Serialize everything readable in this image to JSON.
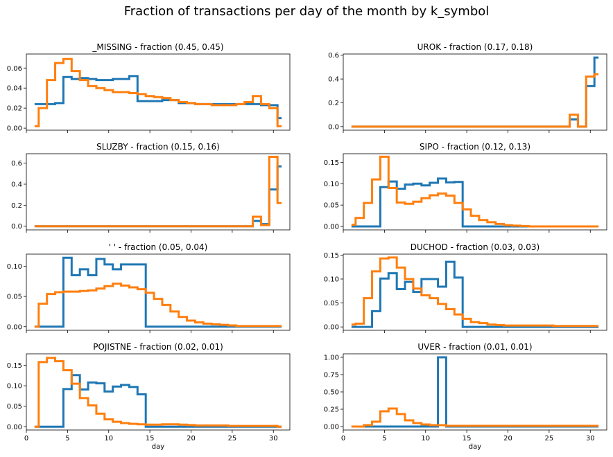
{
  "title": "Fraction of transactions per day of the month by k_symbol",
  "colors": {
    "series_a": "#1f77b4",
    "series_b": "#ff7f0e"
  },
  "chart_data": [
    {
      "type": "line",
      "drawstyle": "steps-mid",
      "title": "_MISSING - fraction (0.45, 0.45)",
      "xlabel": "",
      "xlim": [
        0,
        32
      ],
      "ylim": [
        -0.002,
        0.074
      ],
      "yticks": [
        0.0,
        0.02,
        0.04,
        0.06
      ],
      "ytick_labels": [
        "0.00",
        "0.02",
        "0.04",
        "0.06"
      ],
      "x": [
        1,
        2,
        3,
        4,
        5,
        6,
        7,
        8,
        9,
        10,
        11,
        12,
        13,
        14,
        15,
        16,
        17,
        18,
        19,
        20,
        21,
        22,
        23,
        24,
        25,
        26,
        27,
        28,
        29,
        30,
        31
      ],
      "series": [
        {
          "values": [
            0.024,
            0.024,
            0.024,
            0.025,
            0.051,
            0.049,
            0.05,
            0.049,
            0.048,
            0.048,
            0.049,
            0.049,
            0.052,
            0.027,
            0.027,
            0.027,
            0.028,
            0.028,
            0.025,
            0.025,
            0.024,
            0.024,
            0.024,
            0.024,
            0.024,
            0.024,
            0.024,
            0.024,
            0.023,
            0.023,
            0.01
          ]
        },
        {
          "values": [
            0.002,
            0.02,
            0.048,
            0.065,
            0.069,
            0.057,
            0.048,
            0.042,
            0.04,
            0.038,
            0.036,
            0.036,
            0.035,
            0.034,
            0.032,
            0.031,
            0.03,
            0.028,
            0.026,
            0.025,
            0.024,
            0.024,
            0.023,
            0.023,
            0.023,
            0.024,
            0.026,
            0.032,
            0.024,
            0.02,
            0.002
          ]
        }
      ]
    },
    {
      "type": "line",
      "drawstyle": "steps-mid",
      "title": "UROK - fraction (0.17, 0.18)",
      "xlabel": "",
      "xlim": [
        0,
        32
      ],
      "ylim": [
        -0.03,
        0.61
      ],
      "yticks": [
        0.0,
        0.2,
        0.4,
        0.6
      ],
      "ytick_labels": [
        "0.0",
        "0.2",
        "0.4",
        "0.6"
      ],
      "x": [
        1,
        2,
        3,
        4,
        5,
        6,
        7,
        8,
        9,
        10,
        11,
        12,
        13,
        14,
        15,
        16,
        17,
        18,
        19,
        20,
        21,
        22,
        23,
        24,
        25,
        26,
        27,
        28,
        29,
        30,
        31
      ],
      "series": [
        {
          "values": [
            0,
            0,
            0,
            0,
            0,
            0,
            0,
            0,
            0,
            0,
            0,
            0,
            0,
            0,
            0,
            0,
            0,
            0,
            0,
            0,
            0,
            0,
            0,
            0,
            0,
            0,
            0,
            0.06,
            0,
            0.34,
            0.58
          ]
        },
        {
          "values": [
            0,
            0,
            0,
            0,
            0,
            0,
            0,
            0,
            0,
            0,
            0,
            0,
            0,
            0,
            0,
            0,
            0,
            0,
            0,
            0,
            0,
            0,
            0,
            0,
            0,
            0,
            0,
            0.1,
            0,
            0.42,
            0.44
          ]
        }
      ]
    },
    {
      "type": "line",
      "drawstyle": "steps-mid",
      "title": "SLUZBY - fraction (0.15, 0.16)",
      "xlabel": "",
      "xlim": [
        0,
        32
      ],
      "ylim": [
        -0.035,
        0.69
      ],
      "yticks": [
        0.0,
        0.2,
        0.4,
        0.6
      ],
      "ytick_labels": [
        "0.0",
        "0.2",
        "0.4",
        "0.6"
      ],
      "x": [
        1,
        2,
        3,
        4,
        5,
        6,
        7,
        8,
        9,
        10,
        11,
        12,
        13,
        14,
        15,
        16,
        17,
        18,
        19,
        20,
        21,
        22,
        23,
        24,
        25,
        26,
        27,
        28,
        29,
        30,
        31
      ],
      "series": [
        {
          "values": [
            0,
            0,
            0,
            0,
            0,
            0,
            0,
            0,
            0,
            0,
            0,
            0,
            0,
            0,
            0,
            0,
            0,
            0,
            0,
            0,
            0,
            0,
            0,
            0,
            0,
            0,
            0,
            0.05,
            0.02,
            0.35,
            0.57
          ]
        },
        {
          "values": [
            0,
            0,
            0,
            0,
            0,
            0,
            0,
            0,
            0,
            0,
            0,
            0,
            0,
            0,
            0,
            0,
            0,
            0,
            0,
            0,
            0,
            0,
            0,
            0,
            0,
            0,
            0,
            0.09,
            0.01,
            0.66,
            0.22
          ]
        }
      ]
    },
    {
      "type": "line",
      "drawstyle": "steps-mid",
      "title": "SIPO - fraction (0.12, 0.13)",
      "xlabel": "",
      "xlim": [
        0,
        32
      ],
      "ylim": [
        -0.008,
        0.17
      ],
      "yticks": [
        0.0,
        0.05,
        0.1,
        0.15
      ],
      "ytick_labels": [
        "0.00",
        "0.05",
        "0.10",
        "0.15"
      ],
      "x": [
        1,
        2,
        3,
        4,
        5,
        6,
        7,
        8,
        9,
        10,
        11,
        12,
        13,
        14,
        15,
        16,
        17,
        18,
        19,
        20,
        21,
        22,
        23,
        24,
        25,
        26,
        27,
        28,
        29,
        30,
        31
      ],
      "series": [
        {
          "values": [
            0,
            0,
            0,
            0,
            0.092,
            0.105,
            0.088,
            0.098,
            0.1,
            0.096,
            0.102,
            0.112,
            0.103,
            0.104,
            0,
            0,
            0,
            0,
            0,
            0,
            0,
            0,
            0,
            0,
            0,
            0,
            0,
            0,
            0,
            0,
            0
          ]
        },
        {
          "values": [
            0.004,
            0.02,
            0.055,
            0.11,
            0.163,
            0.09,
            0.056,
            0.053,
            0.058,
            0.066,
            0.073,
            0.077,
            0.072,
            0.055,
            0.04,
            0.025,
            0.015,
            0.01,
            0.006,
            0.003,
            0.002,
            0.001,
            0,
            0,
            0,
            0,
            0,
            0,
            0,
            0,
            0
          ]
        }
      ]
    },
    {
      "type": "line",
      "drawstyle": "steps-mid",
      "title": "' ' - fraction (0.05, 0.04)",
      "xlabel": "",
      "xlim": [
        0,
        32
      ],
      "ylim": [
        -0.006,
        0.12
      ],
      "yticks": [
        0.0,
        0.05,
        0.1
      ],
      "ytick_labels": [
        "0.00",
        "0.05",
        "0.10"
      ],
      "x": [
        1,
        2,
        3,
        4,
        5,
        6,
        7,
        8,
        9,
        10,
        11,
        12,
        13,
        14,
        15,
        16,
        17,
        18,
        19,
        20,
        21,
        22,
        23,
        24,
        25,
        26,
        27,
        28,
        29,
        30,
        31
      ],
      "series": [
        {
          "values": [
            0,
            0,
            0,
            0,
            0.114,
            0.085,
            0.095,
            0.085,
            0.112,
            0.103,
            0.095,
            0.103,
            0.103,
            0.103,
            0,
            0,
            0,
            0,
            0,
            0,
            0,
            0,
            0,
            0,
            0,
            0,
            0,
            0,
            0,
            0,
            0
          ]
        },
        {
          "values": [
            0,
            0.038,
            0.054,
            0.057,
            0.058,
            0.058,
            0.059,
            0.06,
            0.063,
            0.067,
            0.071,
            0.068,
            0.065,
            0.062,
            0.056,
            0.046,
            0.036,
            0.025,
            0.016,
            0.01,
            0.007,
            0.005,
            0.004,
            0.003,
            0.002,
            0.001,
            0.001,
            0.001,
            0.001,
            0.001,
            0.001
          ]
        }
      ]
    },
    {
      "type": "line",
      "drawstyle": "steps-mid",
      "title": "DUCHOD - fraction (0.03, 0.03)",
      "xlabel": "",
      "xlim": [
        0,
        32
      ],
      "ylim": [
        -0.007,
        0.152
      ],
      "yticks": [
        0.0,
        0.05,
        0.1,
        0.15
      ],
      "ytick_labels": [
        "0.00",
        "0.05",
        "0.10",
        "0.15"
      ],
      "x": [
        1,
        2,
        3,
        4,
        5,
        6,
        7,
        8,
        9,
        10,
        11,
        12,
        13,
        14,
        15,
        16,
        17,
        18,
        19,
        20,
        21,
        22,
        23,
        24,
        25,
        26,
        27,
        28,
        29,
        30,
        31
      ],
      "series": [
        {
          "values": [
            0,
            0,
            0,
            0.033,
            0.101,
            0.112,
            0.079,
            0.094,
            0.073,
            0.1,
            0.1,
            0.084,
            0.136,
            0.103,
            0,
            0,
            0,
            0,
            0,
            0,
            0,
            0,
            0,
            0,
            0,
            0,
            0,
            0,
            0,
            0,
            0
          ]
        },
        {
          "values": [
            0.005,
            0.007,
            0.06,
            0.116,
            0.143,
            0.145,
            0.124,
            0.1,
            0.08,
            0.066,
            0.06,
            0.048,
            0.037,
            0.026,
            0.017,
            0.01,
            0.008,
            0.005,
            0.004,
            0.003,
            0.003,
            0.003,
            0.003,
            0.003,
            0.003,
            0.002,
            0.002,
            0.002,
            0.002,
            0.002,
            0.002
          ]
        }
      ]
    },
    {
      "type": "line",
      "drawstyle": "steps-mid",
      "title": "POJISTNE - fraction (0.02, 0.01)",
      "xlabel": "day",
      "xlim": [
        0,
        32
      ],
      "ylim": [
        -0.008,
        0.178
      ],
      "yticks": [
        0.0,
        0.05,
        0.1,
        0.15
      ],
      "ytick_labels": [
        "0.00",
        "0.05",
        "0.10",
        "0.15"
      ],
      "xticks": [
        0,
        5,
        10,
        15,
        20,
        25,
        30
      ],
      "xtick_labels": [
        "0",
        "5",
        "10",
        "15",
        "20",
        "25",
        "30"
      ],
      "x": [
        1,
        2,
        3,
        4,
        5,
        6,
        7,
        8,
        9,
        10,
        11,
        12,
        13,
        14,
        15,
        16,
        17,
        18,
        19,
        20,
        21,
        22,
        23,
        24,
        25,
        26,
        27,
        28,
        29,
        30,
        31
      ],
      "series": [
        {
          "values": [
            0,
            0,
            0,
            0,
            0.092,
            0.126,
            0.091,
            0.108,
            0.106,
            0.086,
            0.098,
            0.102,
            0.097,
            0.079,
            0,
            0,
            0,
            0,
            0,
            0,
            0,
            0,
            0,
            0,
            0,
            0,
            0,
            0,
            0,
            0,
            0
          ]
        },
        {
          "values": [
            0,
            0.158,
            0.168,
            0.16,
            0.138,
            0.105,
            0.07,
            0.052,
            0.032,
            0.018,
            0.012,
            0.009,
            0.007,
            0.006,
            0.005,
            0.005,
            0.006,
            0.006,
            0.005,
            0.004,
            0.003,
            0.003,
            0.003,
            0.003,
            0.002,
            0.002,
            0.002,
            0.002,
            0.002,
            0.002,
            0
          ]
        }
      ]
    },
    {
      "type": "line",
      "drawstyle": "steps-mid",
      "title": "UVER - fraction (0.01, 0.01)",
      "xlabel": "day",
      "xlim": [
        0,
        32
      ],
      "ylim": [
        -0.05,
        1.05
      ],
      "yticks": [
        0.0,
        0.25,
        0.5,
        0.75,
        1.0
      ],
      "ytick_labels": [
        "0.00",
        "0.25",
        "0.50",
        "0.75",
        "1.00"
      ],
      "xticks": [
        0,
        5,
        10,
        15,
        20,
        25,
        30
      ],
      "xtick_labels": [
        "0",
        "5",
        "10",
        "15",
        "20",
        "25",
        "30"
      ],
      "x": [
        1,
        2,
        3,
        4,
        5,
        6,
        7,
        8,
        9,
        10,
        11,
        12,
        13,
        14,
        15,
        16,
        17,
        18,
        19,
        20,
        21,
        22,
        23,
        24,
        25,
        26,
        27,
        28,
        29,
        30,
        31
      ],
      "series": [
        {
          "values": [
            0,
            0,
            0,
            0,
            0,
            0,
            0,
            0,
            0,
            0,
            0,
            1.0,
            0,
            0,
            0,
            0,
            0,
            0,
            0,
            0,
            0,
            0,
            0,
            0,
            0,
            0,
            0,
            0,
            0,
            0,
            0
          ]
        },
        {
          "values": [
            0,
            0,
            0.02,
            0.07,
            0.22,
            0.26,
            0.18,
            0.09,
            0.05,
            0.03,
            0.02,
            0.02,
            0.01,
            0.01,
            0.01,
            0.01,
            0.01,
            0.01,
            0.01,
            0.01,
            0.01,
            0.01,
            0.01,
            0.01,
            0.01,
            0.01,
            0.01,
            0.01,
            0.01,
            0.01,
            0.01
          ]
        }
      ]
    }
  ]
}
